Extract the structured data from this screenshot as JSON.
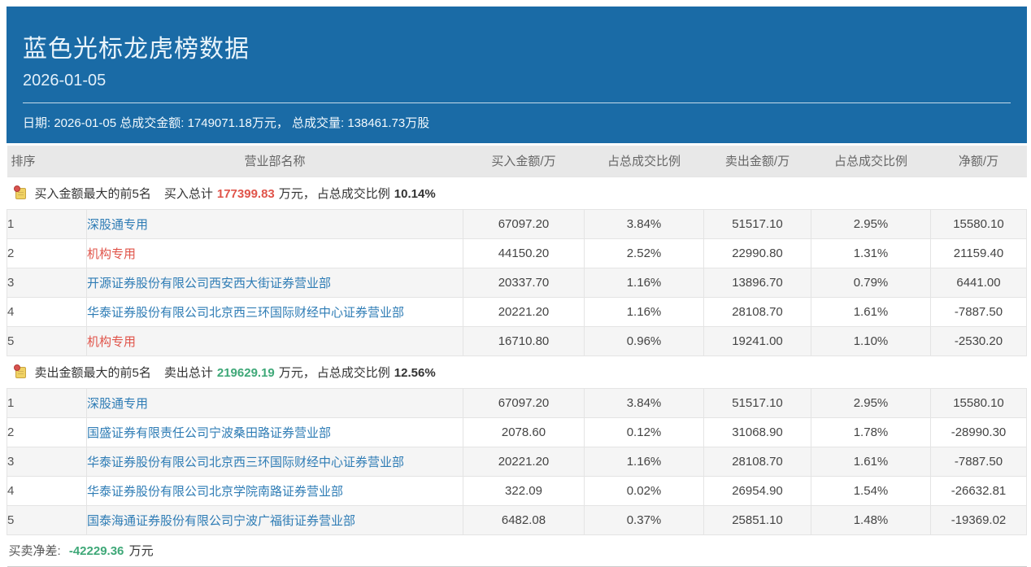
{
  "header": {
    "title": "蓝色光标龙虎榜数据",
    "date": "2026-01-05",
    "info": "日期: 2026-01-05 总成交金额: 1749071.18万元， 总成交量: 138461.73万股"
  },
  "table": {
    "columns": [
      "排序",
      "营业部名称",
      "买入金额/万",
      "占总成交比例",
      "卖出金额/万",
      "占总成交比例",
      "净额/万"
    ],
    "sections": [
      {
        "icon": "note-icon",
        "label": "买入金额最大的前5名",
        "total_label": "买入总计",
        "total_value": "177399.83",
        "total_color": "red",
        "unit": "万元，",
        "ratio_label": "占总成交比例",
        "ratio_value": "10.14%",
        "rows": [
          {
            "rank": "1",
            "name": "深股通专用",
            "name_color": "blue",
            "buy": "67097.20",
            "buy_pct": "3.84%",
            "sell": "51517.10",
            "sell_pct": "2.95%",
            "net": "15580.10",
            "net_color": "red"
          },
          {
            "rank": "2",
            "name": "机构专用",
            "name_color": "red",
            "buy": "44150.20",
            "buy_pct": "2.52%",
            "sell": "22990.80",
            "sell_pct": "1.31%",
            "net": "21159.40",
            "net_color": "red"
          },
          {
            "rank": "3",
            "name": "开源证券股份有限公司西安西大街证券营业部",
            "name_color": "blue",
            "buy": "20337.70",
            "buy_pct": "1.16%",
            "sell": "13896.70",
            "sell_pct": "0.79%",
            "net": "6441.00",
            "net_color": "red"
          },
          {
            "rank": "4",
            "name": "华泰证券股份有限公司北京西三环国际财经中心证券营业部",
            "name_color": "blue",
            "buy": "20221.20",
            "buy_pct": "1.16%",
            "sell": "28108.70",
            "sell_pct": "1.61%",
            "net": "-7887.50",
            "net_color": "green"
          },
          {
            "rank": "5",
            "name": "机构专用",
            "name_color": "red",
            "buy": "16710.80",
            "buy_pct": "0.96%",
            "sell": "19241.00",
            "sell_pct": "1.10%",
            "net": "-2530.20",
            "net_color": "green"
          }
        ]
      },
      {
        "icon": "note-icon",
        "label": "卖出金额最大的前5名",
        "total_label": "卖出总计",
        "total_value": "219629.19",
        "total_color": "green",
        "unit": "万元，",
        "ratio_label": "占总成交比例",
        "ratio_value": "12.56%",
        "rows": [
          {
            "rank": "1",
            "name": "深股通专用",
            "name_color": "blue",
            "buy": "67097.20",
            "buy_pct": "3.84%",
            "sell": "51517.10",
            "sell_pct": "2.95%",
            "net": "15580.10",
            "net_color": "red"
          },
          {
            "rank": "2",
            "name": "国盛证券有限责任公司宁波桑田路证券营业部",
            "name_color": "blue",
            "buy": "2078.60",
            "buy_pct": "0.12%",
            "sell": "31068.90",
            "sell_pct": "1.78%",
            "net": "-28990.30",
            "net_color": "green"
          },
          {
            "rank": "3",
            "name": "华泰证券股份有限公司北京西三环国际财经中心证券营业部",
            "name_color": "blue",
            "buy": "20221.20",
            "buy_pct": "1.16%",
            "sell": "28108.70",
            "sell_pct": "1.61%",
            "net": "-7887.50",
            "net_color": "green"
          },
          {
            "rank": "4",
            "name": "华泰证券股份有限公司北京学院南路证券营业部",
            "name_color": "blue",
            "buy": "322.09",
            "buy_pct": "0.02%",
            "sell": "26954.90",
            "sell_pct": "1.54%",
            "net": "-26632.81",
            "net_color": "green"
          },
          {
            "rank": "5",
            "name": "国泰海通证券股份有限公司宁波广福街证券营业部",
            "name_color": "blue",
            "buy": "6482.08",
            "buy_pct": "0.37%",
            "sell": "25851.10",
            "sell_pct": "1.48%",
            "net": "-19369.02",
            "net_color": "green"
          }
        ]
      }
    ]
  },
  "footer": {
    "label": "买卖净差:",
    "value": "-42229.36",
    "value_color": "green",
    "unit": "万元"
  },
  "colors": {
    "header_bg": "#1a6ba6",
    "buy_red": "#e0544a",
    "sell_green": "#3fa878",
    "link_blue": "#2e7cb5",
    "thead_bg": "#e8e8e8",
    "row_alt_bg": "#f5f5f5"
  }
}
